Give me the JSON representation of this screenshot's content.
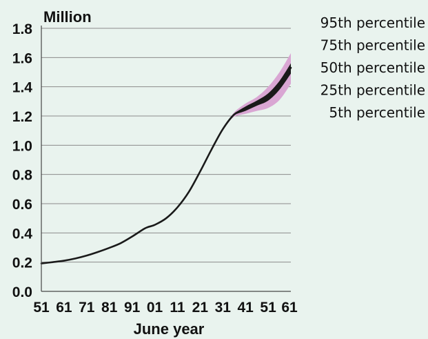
{
  "chart_data": {
    "type": "area",
    "title": "",
    "ylabel": "Million",
    "xlabel": "June year",
    "ylim": [
      0,
      1.8
    ],
    "xlim": [
      1951,
      2061
    ],
    "y_ticks": [
      "0.0",
      "0.2",
      "0.4",
      "0.6",
      "0.8",
      "1.0",
      "1.2",
      "1.4",
      "1.6",
      "1.8"
    ],
    "x_tick_labels": [
      "51",
      "61",
      "71",
      "81",
      "91",
      "01",
      "11",
      "21",
      "31",
      "41",
      "51",
      "61"
    ],
    "grid": "horizontal",
    "legend": {
      "placement": "right",
      "entries": [
        "95th percentile",
        "75th percentile",
        "50th percentile",
        "25th percentile",
        "5th percentile"
      ]
    },
    "colors": {
      "background": "#e9f3ee",
      "median_line": "#1a1a1a",
      "inner_band": "#1a1a1a",
      "outer_band": "#d9a6d3",
      "grid": "#8a8a8a",
      "axis": "#444444"
    },
    "series": [
      {
        "name": "95th percentile",
        "x": [
          2033,
          2036,
          2041,
          2046,
          2051,
          2056,
          2061
        ],
        "values": [
          1.155,
          1.225,
          1.285,
          1.33,
          1.4,
          1.5,
          1.63
        ]
      },
      {
        "name": "75th percentile",
        "x": [
          2033,
          2036,
          2041,
          2046,
          2051,
          2056,
          2061
        ],
        "values": [
          1.152,
          1.215,
          1.265,
          1.305,
          1.355,
          1.44,
          1.56
        ]
      },
      {
        "name": "50th percentile",
        "x": [
          1951,
          1956,
          1961,
          1966,
          1971,
          1976,
          1981,
          1986,
          1991,
          1996,
          1998,
          2001,
          2006,
          2011,
          2016,
          2021,
          2026,
          2031,
          2036,
          2041,
          2046,
          2051,
          2056,
          2061
        ],
        "values": [
          0.191,
          0.2,
          0.21,
          0.225,
          0.245,
          0.27,
          0.298,
          0.33,
          0.375,
          0.425,
          0.44,
          0.455,
          0.5,
          0.575,
          0.68,
          0.82,
          0.97,
          1.11,
          1.21,
          1.25,
          1.29,
          1.33,
          1.41,
          1.53
        ]
      },
      {
        "name": "25th percentile",
        "x": [
          2033,
          2036,
          2041,
          2046,
          2051,
          2056,
          2061
        ],
        "values": [
          1.148,
          1.205,
          1.235,
          1.27,
          1.305,
          1.38,
          1.49
        ]
      },
      {
        "name": "5th percentile",
        "x": [
          2033,
          2036,
          2041,
          2046,
          2051,
          2056,
          2061
        ],
        "values": [
          1.145,
          1.195,
          1.215,
          1.235,
          1.255,
          1.31,
          1.42
        ]
      }
    ]
  }
}
